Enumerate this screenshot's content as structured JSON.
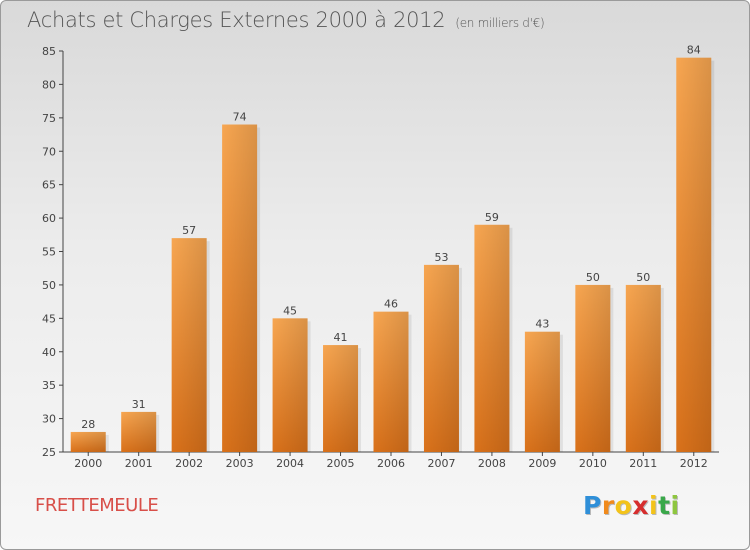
{
  "header": {
    "title": "Achats et Charges Externes 2000 à 2012",
    "unit": "(en milliers d'€)"
  },
  "commune": "FRETTEMEULE",
  "brand": {
    "letters": [
      "P",
      "r",
      "o",
      "x",
      "i",
      "t",
      "i"
    ],
    "colors": [
      "#2f8fd8",
      "#f08a1c",
      "#f3c31a",
      "#d62e2e",
      "#f3c31a",
      "#3aa84a",
      "#8ec63f"
    ]
  },
  "chart_data": {
    "type": "bar",
    "title": "Achats et Charges Externes 2000 à 2012",
    "subtitle": "(en milliers d'€)",
    "categories": [
      "2000",
      "2001",
      "2002",
      "2003",
      "2004",
      "2005",
      "2006",
      "2007",
      "2008",
      "2009",
      "2010",
      "2011",
      "2012"
    ],
    "values": [
      28,
      31,
      57,
      74,
      45,
      41,
      46,
      53,
      59,
      43,
      50,
      50,
      84
    ],
    "data_labels": [
      "28",
      "31",
      "57",
      "74",
      "45",
      "41",
      "46",
      "53",
      "59",
      "43",
      "50",
      "50",
      "84"
    ],
    "yticks": [
      "25",
      "30",
      "35",
      "40",
      "45",
      "50",
      "55",
      "60",
      "65",
      "70",
      "75",
      "80",
      "85"
    ],
    "ylim": [
      25,
      85
    ],
    "bar_color": "#f39a3e",
    "grid": false,
    "legend": "none"
  }
}
